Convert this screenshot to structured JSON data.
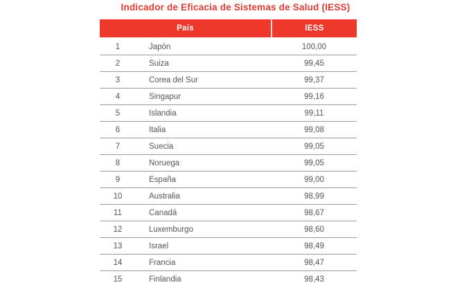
{
  "title": "Indicador de Eficacia de Sistemas de Salud (IESS)",
  "colors": {
    "accent_red": "#ee382b",
    "title_red": "#e23a2e",
    "header_text": "#ffffff",
    "row_text": "#55565a",
    "separator_gray": "#95979a",
    "background": "#ffffff"
  },
  "table": {
    "headers": [
      "País",
      "IESS"
    ],
    "rows": [
      {
        "rank": "1",
        "country": "Japón",
        "iess": "100,00"
      },
      {
        "rank": "2",
        "country": "Suiza",
        "iess": "99,45"
      },
      {
        "rank": "3",
        "country": "Corea del Sur",
        "iess": "99,37"
      },
      {
        "rank": "4",
        "country": "Singapur",
        "iess": "99,16"
      },
      {
        "rank": "5",
        "country": "Islandia",
        "iess": "99,11"
      },
      {
        "rank": "6",
        "country": "Italia",
        "iess": "99,08"
      },
      {
        "rank": "7",
        "country": "Suecia",
        "iess": "99,05"
      },
      {
        "rank": "8",
        "country": "Noruega",
        "iess": "99,05"
      },
      {
        "rank": "9",
        "country": "España",
        "iess": "99,00"
      },
      {
        "rank": "10",
        "country": "Australia",
        "iess": "98,99"
      },
      {
        "rank": "11",
        "country": "Canadá",
        "iess": "98,67"
      },
      {
        "rank": "12",
        "country": "Luxemburgo",
        "iess": "98,60"
      },
      {
        "rank": "13",
        "country": "Israel",
        "iess": "98,49"
      },
      {
        "rank": "14",
        "country": "Francia",
        "iess": "98,47"
      },
      {
        "rank": "15",
        "country": "Finlandia",
        "iess": "98,43"
      }
    ]
  },
  "chart_data": {
    "type": "table",
    "title": "Indicador de Eficacia de Sistemas de Salud (IESS)",
    "columns": [
      "País",
      "IESS"
    ],
    "categories": [
      "Japón",
      "Suiza",
      "Corea del Sur",
      "Singapur",
      "Islandia",
      "Italia",
      "Suecia",
      "Noruega",
      "España",
      "Australia",
      "Canadá",
      "Luxemburgo",
      "Israel",
      "Francia",
      "Finlandia"
    ],
    "values": [
      100.0,
      99.45,
      99.37,
      99.16,
      99.11,
      99.08,
      99.05,
      99.05,
      99.0,
      98.99,
      98.67,
      98.6,
      98.49,
      98.47,
      98.43
    ],
    "ranks": [
      1,
      2,
      3,
      4,
      5,
      6,
      7,
      8,
      9,
      10,
      11,
      12,
      13,
      14,
      15
    ],
    "value_format": "comma-decimal",
    "notes": "ranking table, no gridlines besides horizontal row separators"
  }
}
